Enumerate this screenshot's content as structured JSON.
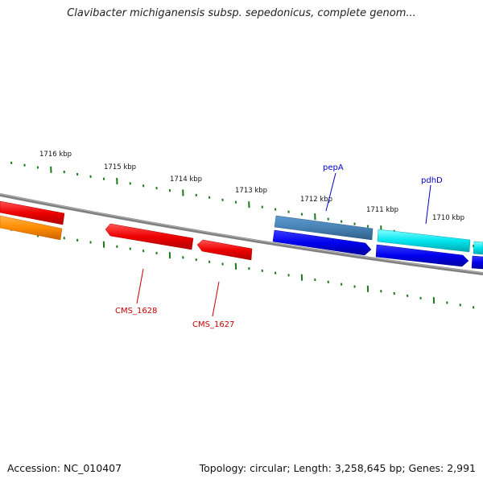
{
  "title": "Clavibacter michiganensis subsp. sepedonicus, complete genom...",
  "accession": "Accession: NC_010407",
  "summary": "Topology: circular; Length: 3,258,645 bp; Genes: 2,991",
  "colors": {
    "backbone": "#808080",
    "tick": "#1a7a1a",
    "red_gene": "#ee0000",
    "orange_gene": "#ff8c00",
    "steelblue_gene": "#4682b4",
    "blue_gene": "#0000ee",
    "cyan_gene": "#00e5ee",
    "blue_label": "#0000cc",
    "red_label": "#cc0000"
  },
  "scale_labels": [
    "1716 kbp",
    "1715 kbp",
    "1714 kbp",
    "1713 kbp",
    "1712 kbp",
    "1711 kbp",
    "1710 kbp"
  ],
  "gene_labels": [
    {
      "text": "pepA",
      "color": "#0000cc"
    },
    {
      "text": "pdhD",
      "color": "#0000cc"
    },
    {
      "text": "CMS_1628",
      "color": "#cc0000"
    },
    {
      "text": "CMS_1627",
      "color": "#cc0000"
    }
  ],
  "genes": [
    {
      "id": "outer-red-1",
      "color": "#ee0000"
    },
    {
      "id": "outer-steelblue-1",
      "color": "#4682b4"
    },
    {
      "id": "outer-cyan-1",
      "color": "#00e5ee"
    },
    {
      "id": "outer-cyan-2",
      "color": "#00e5ee"
    },
    {
      "id": "inner-orange-1",
      "color": "#ff8c00"
    },
    {
      "id": "inner-red-1",
      "color": "#ee0000"
    },
    {
      "id": "inner-red-2",
      "color": "#ee0000"
    },
    {
      "id": "inner-blue-1",
      "color": "#0000ee"
    },
    {
      "id": "inner-blue-2",
      "color": "#0000ee"
    },
    {
      "id": "inner-blue-3",
      "color": "#0000ee"
    }
  ]
}
